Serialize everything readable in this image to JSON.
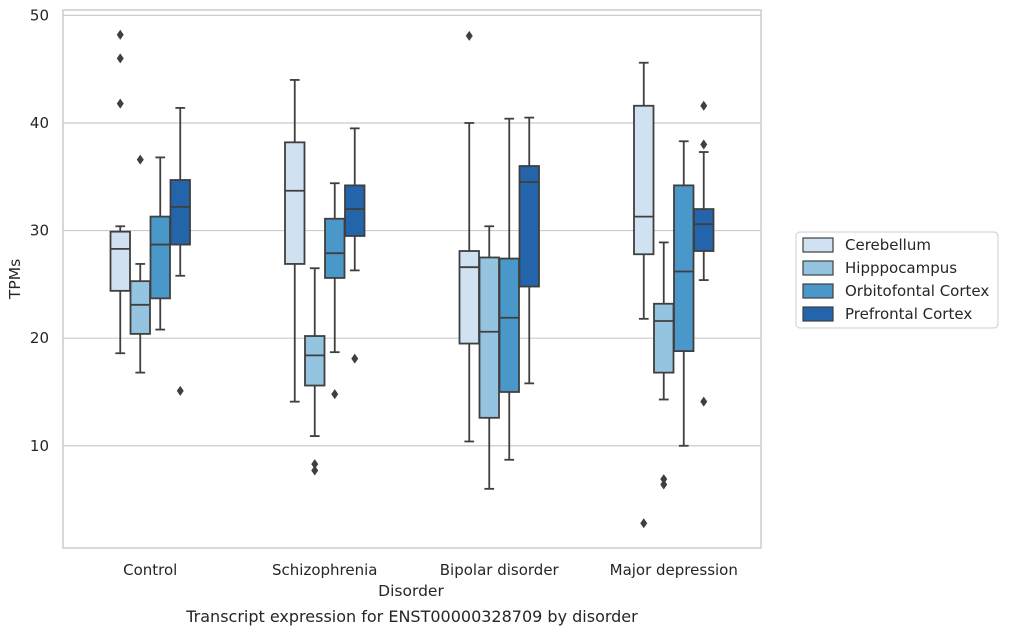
{
  "chart_data": {
    "type": "box",
    "title": "",
    "caption": "Transcript expression for ENST00000328709 by disorder",
    "xlabel": "Disorder",
    "ylabel": "TPMs",
    "ylim": [
      0.5,
      50.5
    ],
    "yticks": [
      10,
      20,
      30,
      40,
      50
    ],
    "grid": "horizontal",
    "legend_position": "right",
    "categories": [
      "Control",
      "Schizophrenia",
      "Bipolar disorder",
      "Major depression"
    ],
    "series": [
      {
        "name": "Cerebellum",
        "color": "#d0e1f2",
        "boxes": [
          {
            "whisker_low": 18.6,
            "q1": 24.4,
            "median": 28.3,
            "q3": 29.9,
            "whisker_high": 30.4,
            "outliers": [
              41.8,
              46.0,
              48.2
            ]
          },
          {
            "whisker_low": 14.1,
            "q1": 26.9,
            "median": 33.7,
            "q3": 38.2,
            "whisker_high": 44.0,
            "outliers": []
          },
          {
            "whisker_low": 10.4,
            "q1": 19.5,
            "median": 26.6,
            "q3": 28.1,
            "whisker_high": 40.0,
            "outliers": [
              48.1
            ]
          },
          {
            "whisker_low": 21.8,
            "q1": 27.8,
            "median": 31.3,
            "q3": 41.6,
            "whisker_high": 45.6,
            "outliers": [
              2.8
            ]
          }
        ]
      },
      {
        "name": "Hipppocampus",
        "color": "#94c4df",
        "boxes": [
          {
            "whisker_low": 16.8,
            "q1": 20.4,
            "median": 23.1,
            "q3": 25.3,
            "whisker_high": 26.9,
            "outliers": [
              36.6
            ]
          },
          {
            "whisker_low": 10.9,
            "q1": 15.6,
            "median": 18.4,
            "q3": 20.2,
            "whisker_high": 26.5,
            "outliers": [
              7.7,
              8.3
            ]
          },
          {
            "whisker_low": 6.0,
            "q1": 12.6,
            "median": 20.6,
            "q3": 27.5,
            "whisker_high": 30.4,
            "outliers": []
          },
          {
            "whisker_low": 14.3,
            "q1": 16.8,
            "median": 21.6,
            "q3": 23.2,
            "whisker_high": 28.9,
            "outliers": [
              6.4,
              6.9
            ]
          }
        ]
      },
      {
        "name": "Orbitofontal Cortex",
        "color": "#4a98c9",
        "boxes": [
          {
            "whisker_low": 20.8,
            "q1": 23.7,
            "median": 28.7,
            "q3": 31.3,
            "whisker_high": 36.8,
            "outliers": []
          },
          {
            "whisker_low": 18.7,
            "q1": 25.6,
            "median": 27.9,
            "q3": 31.1,
            "whisker_high": 34.4,
            "outliers": [
              14.8
            ]
          },
          {
            "whisker_low": 8.7,
            "q1": 15.0,
            "median": 21.9,
            "q3": 27.4,
            "whisker_high": 40.4,
            "outliers": []
          },
          {
            "whisker_low": 10.0,
            "q1": 18.8,
            "median": 26.2,
            "q3": 34.2,
            "whisker_high": 38.3,
            "outliers": []
          }
        ]
      },
      {
        "name": "Prefrontal Cortex",
        "color": "#2464ab",
        "boxes": [
          {
            "whisker_low": 25.8,
            "q1": 28.7,
            "median": 32.2,
            "q3": 34.7,
            "whisker_high": 41.4,
            "outliers": [
              15.1
            ]
          },
          {
            "whisker_low": 26.3,
            "q1": 29.5,
            "median": 32.0,
            "q3": 34.2,
            "whisker_high": 39.5,
            "outliers": [
              18.1
            ]
          },
          {
            "whisker_low": 15.8,
            "q1": 24.8,
            "median": 34.5,
            "q3": 36.0,
            "whisker_high": 40.5,
            "outliers": []
          },
          {
            "whisker_low": 25.4,
            "q1": 28.1,
            "median": 30.6,
            "q3": 32.0,
            "whisker_high": 37.3,
            "outliers": [
              14.1,
              38.0,
              41.6
            ]
          }
        ]
      }
    ]
  }
}
